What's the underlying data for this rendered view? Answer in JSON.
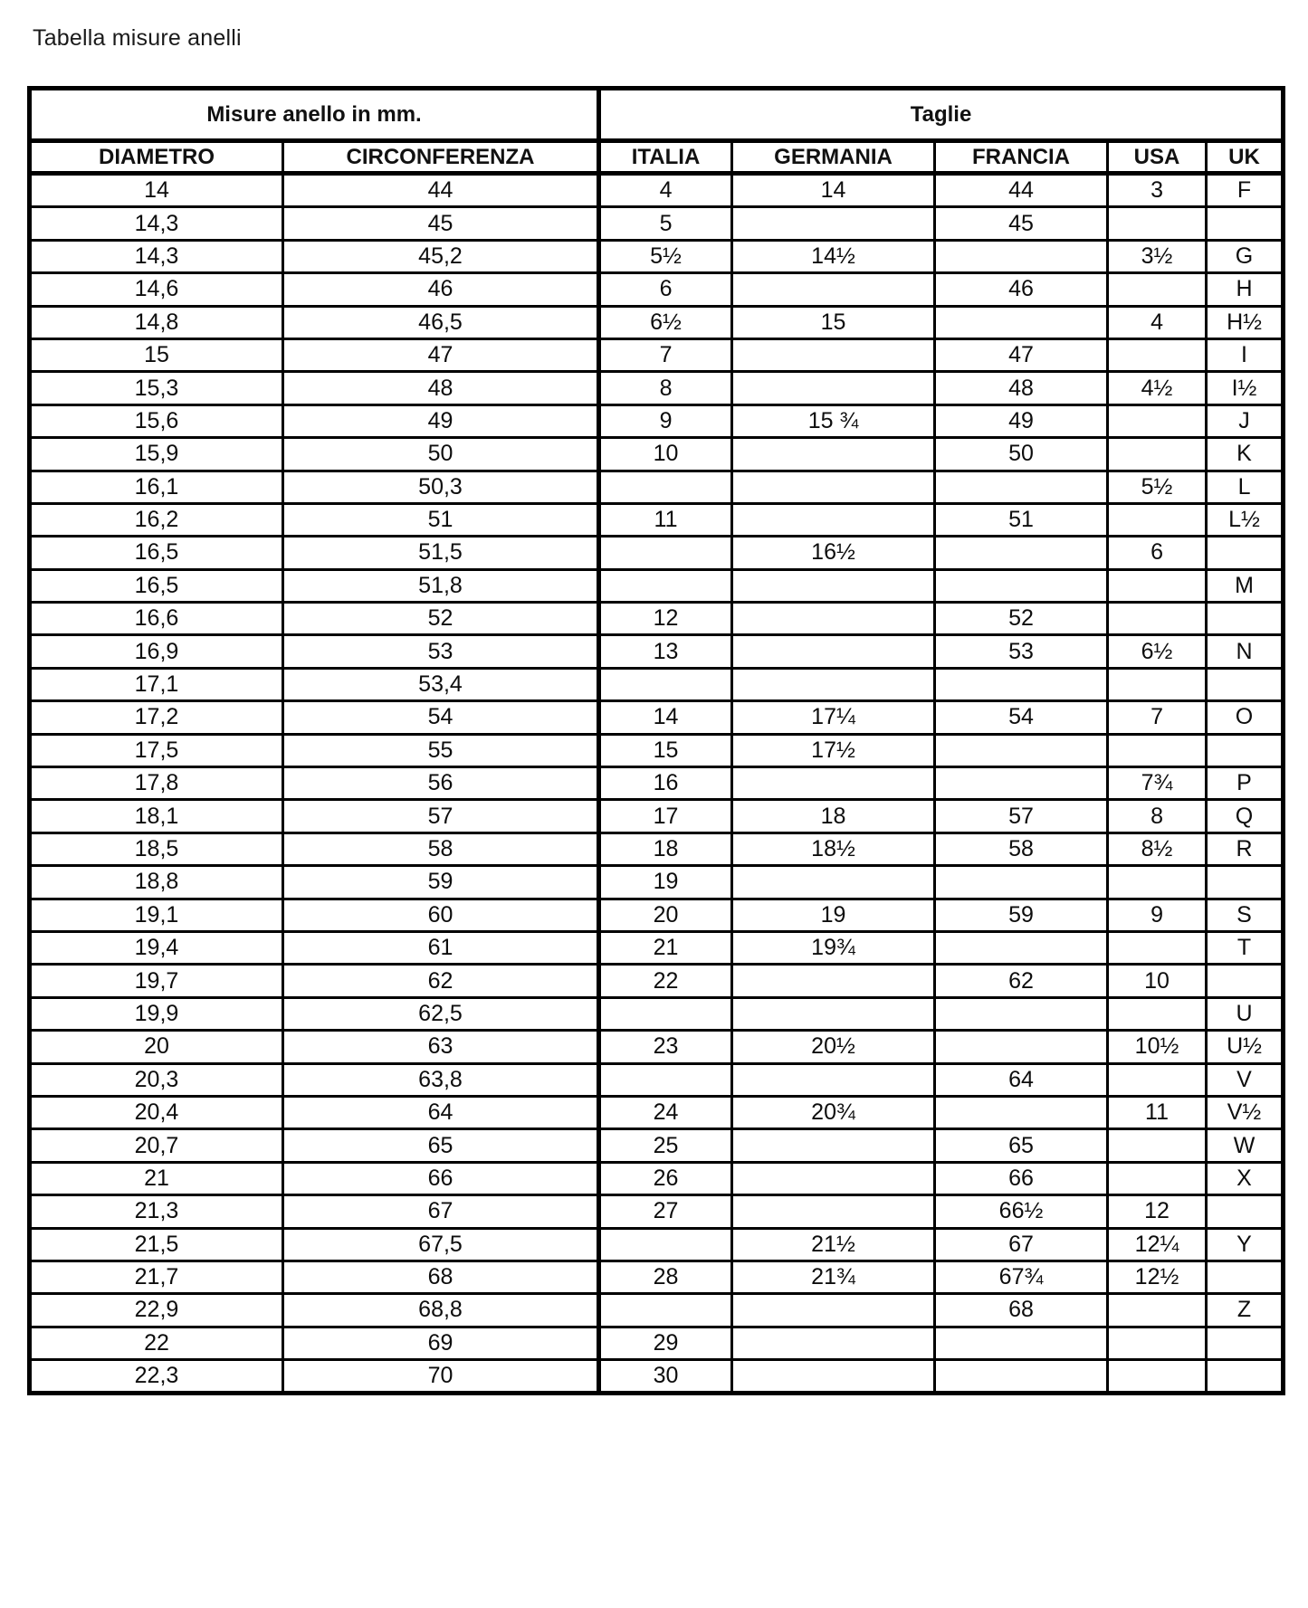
{
  "title": "Tabella misure anelli",
  "table": {
    "group_headers": [
      {
        "label": "Misure anello in mm.",
        "span": 2
      },
      {
        "label": "Taglie",
        "span": 5
      }
    ],
    "columns": [
      "DIAMETRO",
      "CIRCONFERENZA",
      "ITALIA",
      "GERMANIA",
      "FRANCIA",
      "USA",
      "UK"
    ],
    "rows": [
      [
        "14",
        "44",
        "4",
        "14",
        "44",
        "3",
        "F"
      ],
      [
        "14,3",
        "45",
        "5",
        "",
        "45",
        "",
        ""
      ],
      [
        "14,3",
        "45,2",
        "5½",
        "14½",
        "",
        "3½",
        "G"
      ],
      [
        "14,6",
        "46",
        "6",
        "",
        "46",
        "",
        "H"
      ],
      [
        "14,8",
        "46,5",
        "6½",
        "15",
        "",
        "4",
        "H½"
      ],
      [
        "15",
        "47",
        "7",
        "",
        "47",
        "",
        "I"
      ],
      [
        "15,3",
        "48",
        "8",
        "",
        "48",
        "4½",
        "I½"
      ],
      [
        "15,6",
        "49",
        "9",
        "15 ¾",
        "49",
        "",
        "J"
      ],
      [
        "15,9",
        "50",
        "10",
        "",
        "50",
        "",
        "K"
      ],
      [
        "16,1",
        "50,3",
        "",
        "",
        "",
        "5½",
        "L"
      ],
      [
        "16,2",
        "51",
        "11",
        "",
        "51",
        "",
        "L½"
      ],
      [
        "16,5",
        "51,5",
        "",
        "16½",
        "",
        "6",
        ""
      ],
      [
        "16,5",
        "51,8",
        "",
        "",
        "",
        "",
        "M"
      ],
      [
        "16,6",
        "52",
        "12",
        "",
        "52",
        "",
        ""
      ],
      [
        "16,9",
        "53",
        "13",
        "",
        "53",
        "6½",
        "N"
      ],
      [
        "17,1",
        "53,4",
        "",
        "",
        "",
        "",
        ""
      ],
      [
        "17,2",
        "54",
        "14",
        "17¼",
        "54",
        "7",
        "O"
      ],
      [
        "17,5",
        "55",
        "15",
        "17½",
        "",
        "",
        ""
      ],
      [
        "17,8",
        "56",
        "16",
        "",
        "",
        "7¾",
        "P"
      ],
      [
        "18,1",
        "57",
        "17",
        "18",
        "57",
        "8",
        "Q"
      ],
      [
        "18,5",
        "58",
        "18",
        "18½",
        "58",
        "8½",
        "R"
      ],
      [
        "18,8",
        "59",
        "19",
        "",
        "",
        "",
        ""
      ],
      [
        "19,1",
        "60",
        "20",
        "19",
        "59",
        "9",
        "S"
      ],
      [
        "19,4",
        "61",
        "21",
        "19¾",
        "",
        "",
        "T"
      ],
      [
        "19,7",
        "62",
        "22",
        "",
        "62",
        "10",
        ""
      ],
      [
        "19,9",
        "62,5",
        "",
        "",
        "",
        "",
        "U"
      ],
      [
        "20",
        "63",
        "23",
        "20½",
        "",
        "10½",
        "U½"
      ],
      [
        "20,3",
        "63,8",
        "",
        "",
        "64",
        "",
        "V"
      ],
      [
        "20,4",
        "64",
        "24",
        "20¾",
        "",
        "11",
        "V½"
      ],
      [
        "20,7",
        "65",
        "25",
        "",
        "65",
        "",
        "W"
      ],
      [
        "21",
        "66",
        "26",
        "",
        "66",
        "",
        "X"
      ],
      [
        "21,3",
        "67",
        "27",
        "",
        "66½",
        "12",
        ""
      ],
      [
        "21,5",
        "67,5",
        "",
        "21½",
        "67",
        "12¼",
        "Y"
      ],
      [
        "21,7",
        "68",
        "28",
        "21¾",
        "67¾",
        "12½",
        ""
      ],
      [
        "22,9",
        "68,8",
        "",
        "",
        "68",
        "",
        "Z"
      ],
      [
        "22",
        "69",
        "29",
        "",
        "",
        "",
        ""
      ],
      [
        "22,3",
        "70",
        "30",
        "",
        "",
        "",
        ""
      ]
    ]
  }
}
